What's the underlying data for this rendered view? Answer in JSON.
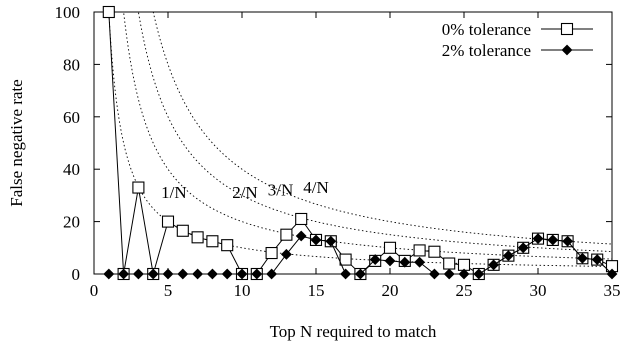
{
  "chart_data": {
    "type": "line",
    "xlabel": "Top N required to match",
    "ylabel": "False negative rate",
    "xlim": [
      0,
      35
    ],
    "ylim": [
      0,
      100
    ],
    "x_ticks": [
      0,
      5,
      10,
      15,
      20,
      25,
      30,
      35
    ],
    "y_ticks": [
      0,
      20,
      40,
      60,
      80,
      100
    ],
    "grid": false,
    "legend_position": "top-right",
    "series": [
      {
        "name": "0% tolerance",
        "marker": "open-square",
        "x": [
          1,
          2,
          3,
          4,
          5,
          6,
          7,
          8,
          9,
          10,
          11,
          12,
          13,
          14,
          15,
          16,
          17,
          18,
          19,
          20,
          21,
          22,
          23,
          24,
          25,
          26,
          27,
          28,
          29,
          30,
          31,
          32,
          33,
          34,
          35
        ],
        "values": [
          100,
          0,
          33,
          0,
          20,
          16.5,
          14,
          12.5,
          11,
          0,
          0,
          8,
          15,
          21,
          13,
          12.5,
          5.5,
          0,
          5,
          10,
          5,
          9,
          8.5,
          4,
          3.5,
          0,
          3.5,
          7,
          10,
          13.5,
          13,
          12.5,
          6,
          5.5,
          3
        ]
      },
      {
        "name": "2% tolerance",
        "marker": "filled-diamond",
        "x": [
          1,
          2,
          3,
          4,
          5,
          6,
          7,
          8,
          9,
          10,
          11,
          12,
          13,
          14,
          15,
          16,
          17,
          18,
          19,
          20,
          21,
          22,
          23,
          24,
          25,
          26,
          27,
          28,
          29,
          30,
          31,
          32,
          33,
          34,
          35
        ],
        "values": [
          0,
          0,
          0,
          0,
          0,
          0,
          0,
          0,
          0,
          0,
          0,
          0,
          7.5,
          14.5,
          13,
          12.5,
          0,
          0,
          5.5,
          5,
          4.5,
          4.5,
          0,
          0,
          0,
          0,
          3.5,
          7,
          10,
          13.5,
          13,
          12.5,
          6,
          5.5,
          0
        ]
      }
    ],
    "reference_curves": [
      {
        "label": "1/N",
        "k": 1
      },
      {
        "label": "2/N",
        "k": 2
      },
      {
        "label": "3/N",
        "k": 3
      },
      {
        "label": "4/N",
        "k": 4
      }
    ]
  }
}
